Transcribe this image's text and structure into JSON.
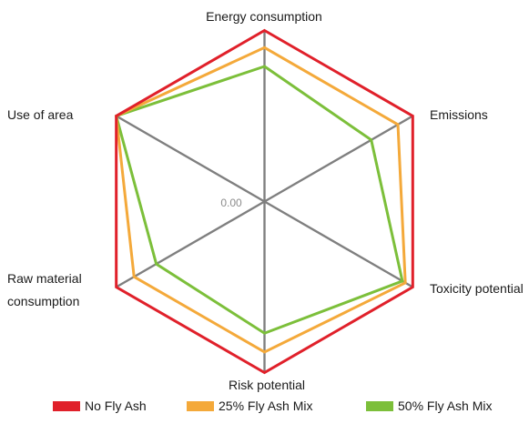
{
  "chart_data": {
    "type": "radar",
    "axes": [
      "Energy consumption",
      "Emissions",
      "Toxicity potential",
      "Risk potential",
      "Raw material consumption",
      "Use of area"
    ],
    "center_label": "0.00",
    "series": [
      {
        "name": "No Fly Ash",
        "color": "#e0202a",
        "values": [
          1.0,
          1.0,
          1.0,
          1.0,
          1.0,
          1.0
        ]
      },
      {
        "name": "25% Fly Ash Mix",
        "color": "#f4a93a",
        "values": [
          0.9,
          0.9,
          0.95,
          0.88,
          0.88,
          1.0
        ]
      },
      {
        "name": "50% Fly Ash Mix",
        "color": "#7cbf3a",
        "values": [
          0.79,
          0.72,
          0.93,
          0.77,
          0.73,
          1.0
        ]
      }
    ],
    "spoke_color": "#7f7f7f",
    "legend_position": "bottom"
  }
}
